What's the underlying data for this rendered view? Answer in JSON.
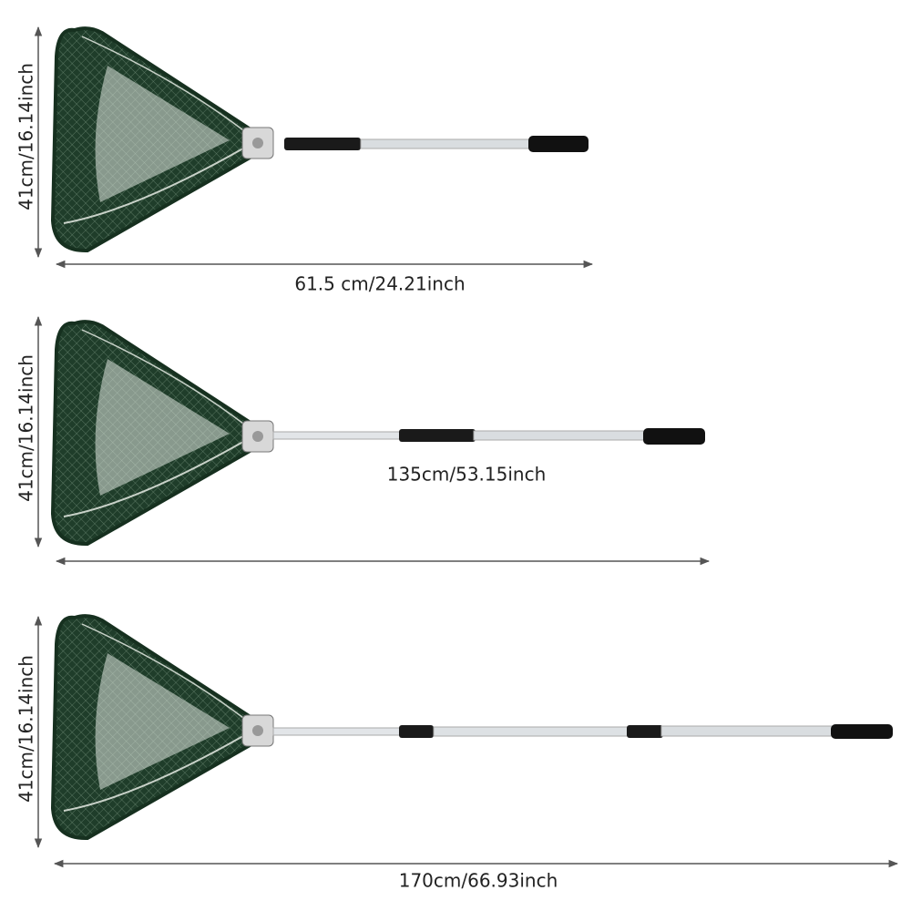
{
  "panels": [
    {
      "height_label": "41cm/16.14inch",
      "length_label": "61.5 cm/24.21inch"
    },
    {
      "height_label": "41cm/16.14inch",
      "length_label": "135cm/53.15inch"
    },
    {
      "height_label": "41cm/16.14inch",
      "length_label": "170cm/66.93inch"
    }
  ]
}
